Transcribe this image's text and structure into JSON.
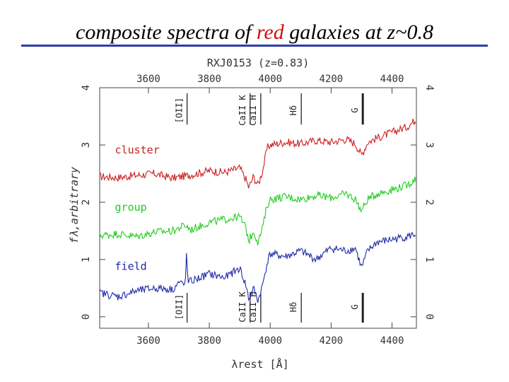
{
  "slide": {
    "title_before": "composite spectra of ",
    "title_accent": "red",
    "title_after": " galaxies at z~0.8",
    "accent_color": "#d01010",
    "rule_color": "#2d3cab"
  },
  "chart_data": {
    "type": "line",
    "title": "RXJ0153 (z=0.83)",
    "xlabel": "λrest [Å]",
    "ylabel": "fλ,arbitrary",
    "xlim": [
      3440,
      4480
    ],
    "ylim": [
      -0.2,
      4.0
    ],
    "x_ticks": [
      3600,
      3800,
      4000,
      4200,
      4400
    ],
    "y_ticks": [
      0,
      1,
      2,
      3,
      4
    ],
    "y_tick_labels": [
      "0",
      "1",
      "2",
      "3",
      "4"
    ],
    "line_markers": [
      {
        "label": "[OII]",
        "x": 3727
      },
      {
        "label": "CaII K",
        "x": 3934
      },
      {
        "label": "CaII H",
        "x": 3969
      },
      {
        "label": "Hδ",
        "x": 4102
      },
      {
        "label": "G",
        "x": 4304
      }
    ],
    "series": [
      {
        "name": "cluster",
        "color": "#cc2020",
        "x": [
          3440,
          3500,
          3560,
          3620,
          3680,
          3740,
          3800,
          3850,
          3900,
          3920,
          3930,
          3945,
          3960,
          3975,
          3990,
          4000,
          4050,
          4100,
          4150,
          4200,
          4250,
          4280,
          4300,
          4320,
          4350,
          4400,
          4450,
          4480
        ],
        "y": [
          2.45,
          2.43,
          2.47,
          2.5,
          2.42,
          2.48,
          2.55,
          2.52,
          2.6,
          2.4,
          2.25,
          2.45,
          2.3,
          2.55,
          2.95,
          3.0,
          3.05,
          3.02,
          3.08,
          3.05,
          3.1,
          3.02,
          2.82,
          3.05,
          3.12,
          3.22,
          3.32,
          3.45
        ]
      },
      {
        "name": "group",
        "color": "#22cc22",
        "x": [
          3440,
          3500,
          3560,
          3620,
          3680,
          3700,
          3720,
          3740,
          3800,
          3850,
          3900,
          3920,
          3930,
          3945,
          3960,
          3975,
          3990,
          4000,
          4050,
          4100,
          4150,
          4200,
          4250,
          4280,
          4300,
          4320,
          4350,
          4400,
          4450,
          4480
        ],
        "y": [
          1.42,
          1.45,
          1.4,
          1.48,
          1.5,
          1.55,
          1.6,
          1.52,
          1.65,
          1.7,
          1.75,
          1.55,
          1.32,
          1.5,
          1.3,
          1.55,
          1.95,
          2.05,
          2.1,
          2.05,
          2.12,
          2.08,
          2.15,
          2.05,
          1.85,
          2.05,
          2.15,
          2.22,
          2.3,
          2.42
        ]
      },
      {
        "name": "field",
        "color": "#1e2aa8",
        "x": [
          3440,
          3500,
          3560,
          3620,
          3680,
          3700,
          3720,
          3725,
          3730,
          3740,
          3800,
          3850,
          3900,
          3920,
          3930,
          3945,
          3960,
          3975,
          3990,
          4000,
          4050,
          4100,
          4150,
          4200,
          4250,
          4280,
          4300,
          4320,
          4350,
          4400,
          4450,
          4480
        ],
        "y": [
          0.42,
          0.35,
          0.45,
          0.5,
          0.48,
          0.6,
          0.55,
          1.05,
          0.6,
          0.62,
          0.75,
          0.68,
          0.85,
          0.55,
          0.3,
          0.5,
          0.28,
          0.55,
          0.95,
          1.1,
          1.05,
          1.15,
          1.0,
          1.2,
          1.15,
          1.2,
          0.85,
          1.15,
          1.3,
          1.35,
          1.4,
          1.45
        ]
      }
    ]
  }
}
